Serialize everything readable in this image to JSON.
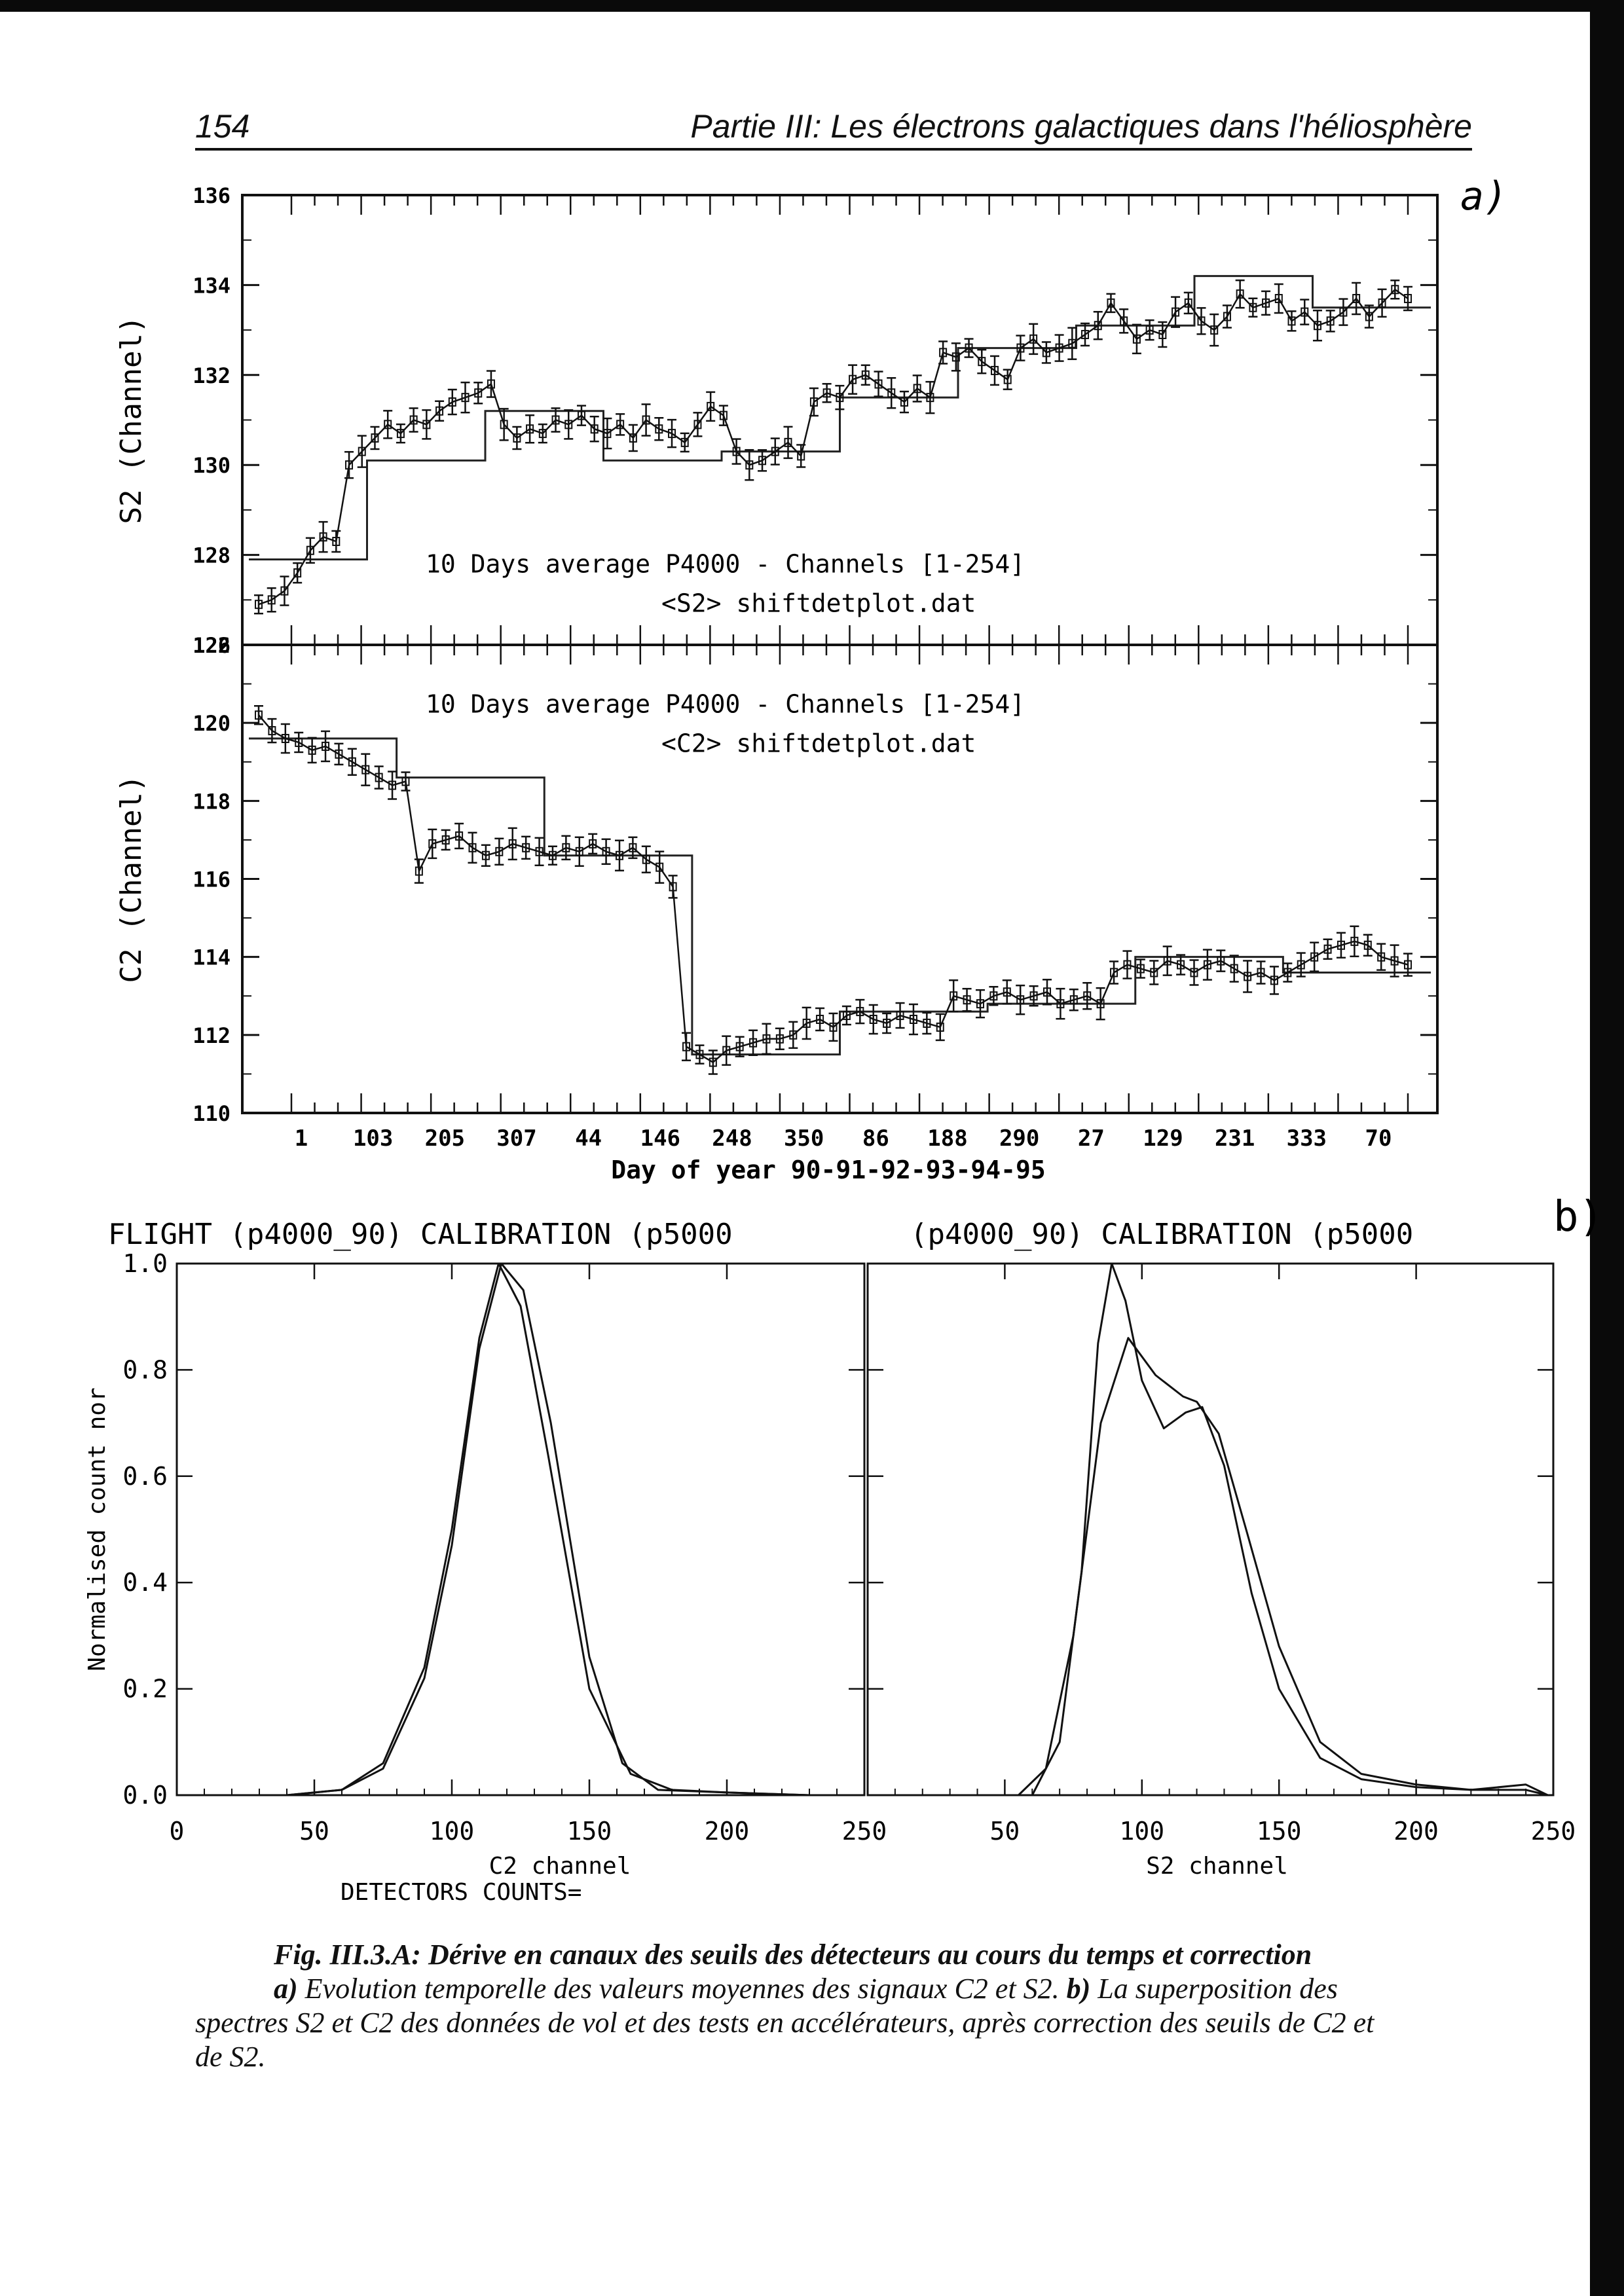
{
  "header": {
    "page_number": "154",
    "title": "Partie III: Les électrons galactiques dans l'héliosphère"
  },
  "panel_labels": {
    "a": "a)",
    "b": "b)"
  },
  "chart_data": [
    {
      "type": "line",
      "panel": "a-top",
      "ylabel": "S2 (Channel)",
      "ylim": [
        126,
        136
      ],
      "yticks": [
        126,
        128,
        130,
        132,
        134,
        136
      ],
      "annotation_1": "10 Days average P4000 - Channels [1-254]",
      "annotation_2": "<S2> shiftdetplot.dat",
      "series": [
        {
          "values": [
            126.9,
            127.0,
            127.2,
            127.6,
            128.1,
            128.4,
            128.3,
            130.0,
            130.3,
            130.6,
            130.9,
            130.7,
            131.0,
            130.9,
            131.2,
            131.4,
            131.5,
            131.6,
            131.8,
            130.9,
            130.6,
            130.8,
            130.7,
            131.0,
            130.9,
            131.1,
            130.8,
            130.7,
            130.9,
            130.6,
            131.0,
            130.8,
            130.7,
            130.5,
            130.9,
            131.3,
            131.1,
            130.3,
            130.0,
            130.1,
            130.3,
            130.5,
            130.2,
            131.4,
            131.6,
            131.5,
            131.9,
            132.0,
            131.8,
            131.6,
            131.4,
            131.7,
            131.5,
            132.5,
            132.4,
            132.6,
            132.3,
            132.1,
            131.9,
            132.6,
            132.8,
            132.5,
            132.6,
            132.7,
            132.9,
            133.1,
            133.6,
            133.2,
            132.8,
            133.0,
            132.9,
            133.4,
            133.6,
            133.2,
            133.0,
            133.3,
            133.8,
            133.5,
            133.6,
            133.7,
            133.2,
            133.4,
            133.1,
            133.2,
            133.4,
            133.7,
            133.3,
            133.6,
            133.9,
            133.7
          ]
        }
      ],
      "levels": [
        127.9,
        130.1,
        131.2,
        130.1,
        130.3,
        131.5,
        132.6,
        133.1,
        134.2,
        133.5
      ]
    },
    {
      "type": "line",
      "panel": "a-bottom",
      "ylabel": "C2 (Channel)",
      "xlabel": "Day of year 90-91-92-93-94-95",
      "ylim": [
        110,
        122
      ],
      "yticks": [
        110,
        112,
        114,
        116,
        118,
        120,
        122
      ],
      "xtick_labels": [
        "1",
        "103",
        "205",
        "307",
        "44",
        "146",
        "248",
        "350",
        "86",
        "188",
        "290",
        "27",
        "129",
        "231",
        "333",
        "70"
      ],
      "annotation_1": "10 Days average P4000 - Channels [1-254]",
      "annotation_2": "<C2> shiftdetplot.dat",
      "series": [
        {
          "values": [
            120.2,
            119.8,
            119.6,
            119.5,
            119.3,
            119.4,
            119.2,
            119.0,
            118.8,
            118.6,
            118.4,
            118.5,
            116.2,
            116.9,
            117.0,
            117.1,
            116.8,
            116.6,
            116.7,
            116.9,
            116.8,
            116.7,
            116.6,
            116.8,
            116.7,
            116.9,
            116.7,
            116.6,
            116.8,
            116.5,
            116.3,
            115.8,
            111.7,
            111.5,
            111.3,
            111.6,
            111.7,
            111.8,
            111.9,
            111.9,
            112.0,
            112.3,
            112.4,
            112.2,
            112.5,
            112.6,
            112.4,
            112.3,
            112.5,
            112.4,
            112.3,
            112.2,
            113.0,
            112.9,
            112.8,
            113.0,
            113.1,
            112.9,
            113.0,
            113.1,
            112.8,
            112.9,
            113.0,
            112.8,
            113.6,
            113.8,
            113.7,
            113.6,
            113.9,
            113.8,
            113.6,
            113.8,
            113.9,
            113.7,
            113.5,
            113.6,
            113.4,
            113.6,
            113.8,
            114.0,
            114.2,
            114.3,
            114.4,
            114.3,
            114.0,
            113.9,
            113.8
          ]
        }
      ],
      "levels": [
        119.6,
        118.6,
        116.6,
        111.5,
        112.6,
        112.8,
        114.0,
        113.6
      ]
    },
    {
      "type": "line",
      "panel": "b-left",
      "title": "FLIGHT (p4000_90) CALIBRATION (p5000",
      "xlabel": "C2 channel",
      "ylabel": "Normalised count nor",
      "note": "DETECTORS COUNTS=",
      "xlim": [
        0,
        250
      ],
      "ylim": [
        0,
        1.0
      ],
      "xticks": [
        0,
        50,
        100,
        150,
        200,
        250
      ],
      "yticks": [
        0.0,
        0.2,
        0.4,
        0.6,
        0.8,
        1.0
      ],
      "series": [
        {
          "x": [
            20,
            40,
            60,
            75,
            90,
            100,
            110,
            117,
            125,
            135,
            150,
            165,
            180,
            200,
            230
          ],
          "values": [
            0,
            0,
            0.01,
            0.06,
            0.24,
            0.5,
            0.86,
            1.0,
            0.92,
            0.64,
            0.2,
            0.04,
            0.01,
            0.005,
            0
          ]
        },
        {
          "x": [
            20,
            40,
            60,
            75,
            90,
            100,
            110,
            118,
            126,
            136,
            150,
            162,
            175,
            200,
            230
          ],
          "values": [
            0,
            0,
            0.01,
            0.05,
            0.22,
            0.47,
            0.84,
            1.0,
            0.95,
            0.7,
            0.26,
            0.06,
            0.01,
            0.005,
            0
          ]
        }
      ]
    },
    {
      "type": "line",
      "panel": "b-right",
      "title": "(p4000_90) CALIBRATION (p5000",
      "xlabel": "S2 channel",
      "xlim": [
        0,
        250
      ],
      "ylim": [
        0,
        1.0
      ],
      "xticks": [
        50,
        100,
        150,
        200,
        250
      ],
      "series": [
        {
          "x": [
            60,
            70,
            78,
            84,
            89,
            94,
            100,
            108,
            116,
            122,
            130,
            140,
            150,
            165,
            180,
            200,
            220,
            240,
            248
          ],
          "values": [
            0.0,
            0.1,
            0.42,
            0.85,
            1.0,
            0.93,
            0.78,
            0.69,
            0.72,
            0.73,
            0.62,
            0.38,
            0.2,
            0.07,
            0.03,
            0.015,
            0.01,
            0.01,
            0.0
          ]
        },
        {
          "x": [
            55,
            65,
            75,
            85,
            95,
            105,
            115,
            120,
            128,
            138,
            150,
            165,
            180,
            200,
            220,
            240,
            248
          ],
          "values": [
            0.0,
            0.05,
            0.3,
            0.7,
            0.86,
            0.79,
            0.75,
            0.74,
            0.68,
            0.5,
            0.28,
            0.1,
            0.04,
            0.02,
            0.01,
            0.02,
            0.0
          ]
        }
      ]
    }
  ],
  "caption": {
    "line1": "Fig. III.3.A: Dérive en canaux des seuils des détecteurs au cours du temps et correction",
    "line2_lead": "a)",
    "line2_rest": " Evolution temporelle des valeurs moyennes des signaux C2 et S2. ",
    "line2_b": "b)",
    "line2_tail": " La superposition des",
    "line3": "spectres S2 et C2 des données de vol et des tests en accélérateurs, après correction des seuils de C2 et",
    "line4": "de S2."
  }
}
